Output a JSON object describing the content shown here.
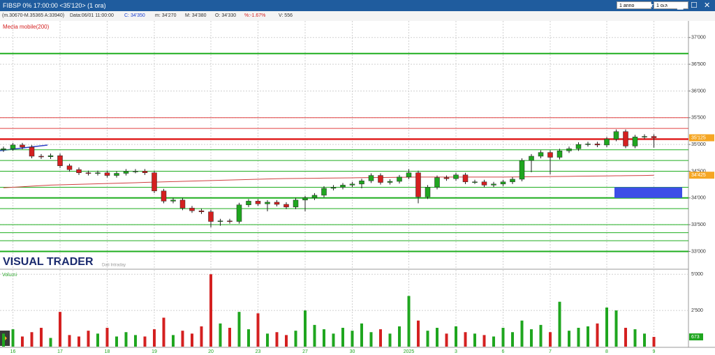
{
  "header": {
    "title": "FIBSP 0% 17:00:00  <35'120> (1 ora)",
    "period": "1 anno",
    "interval": "1 ora",
    "info": [
      "(m.30670-M.35365 A:33940)",
      "Data:06/01 11:00:00",
      "C: 34'350",
      "m: 34'270",
      "M: 34'380",
      "O: 34'330",
      "%:-1.67%",
      "V: 556"
    ]
  },
  "chart_data": {
    "type": "candlestick",
    "logo": "VISUAL TRADER",
    "logo_note": "Dati Intraday",
    "grid": true,
    "categories": [
      null,
      "16",
      null,
      null,
      null,
      null,
      "17",
      null,
      null,
      null,
      null,
      "18",
      null,
      null,
      null,
      null,
      "19",
      null,
      null,
      null,
      null,
      null,
      "20",
      null,
      null,
      null,
      null,
      "23",
      null,
      null,
      null,
      null,
      "27",
      null,
      null,
      null,
      null,
      "30",
      null,
      null,
      null,
      null,
      null,
      "2025",
      null,
      null,
      null,
      null,
      "3",
      null,
      null,
      null,
      null,
      "6",
      null,
      null,
      null,
      null,
      "7",
      null,
      null,
      null,
      null,
      null,
      "8",
      null,
      null,
      null,
      null,
      "9"
    ],
    "open": [
      34900,
      34920,
      34990,
      34950,
      34780,
      34770,
      34790,
      34600,
      34530,
      34470,
      34460,
      34470,
      34420,
      34460,
      34500,
      34500,
      34470,
      34130,
      33940,
      33960,
      33810,
      33760,
      33740,
      33560,
      33570,
      33560,
      33870,
      33940,
      33890,
      33920,
      33880,
      33830,
      33960,
      34000,
      34050,
      34180,
      34200,
      34240,
      34260,
      34320,
      34420,
      34290,
      34310,
      34390,
      34470,
      34020,
      34200,
      34380,
      34360,
      34430,
      34300,
      34300,
      34240,
      34260,
      34300,
      34350,
      34700,
      34780,
      34850,
      34760,
      34880,
      34920,
      35000,
      35010,
      34990,
      35100,
      35240,
      34970,
      35140,
      35150
    ],
    "high": [
      34960,
      35030,
      35030,
      34990,
      34820,
      34830,
      34830,
      34640,
      34570,
      34510,
      34510,
      34510,
      34500,
      34540,
      34540,
      34540,
      34510,
      34170,
      34000,
      34000,
      33850,
      33800,
      33780,
      33610,
      33610,
      33910,
      33980,
      33980,
      33960,
      33960,
      33920,
      34000,
      34040,
      34090,
      34220,
      34240,
      34280,
      34300,
      34360,
      34460,
      34460,
      34350,
      34430,
      34540,
      34510,
      34240,
      34420,
      34420,
      34470,
      34470,
      34340,
      34340,
      34300,
      34340,
      34390,
      34740,
      34820,
      34890,
      34890,
      34920,
      34960,
      35040,
      35050,
      35050,
      35140,
      35280,
      35280,
      35180,
      35190,
      35190
    ],
    "low": [
      34860,
      34880,
      34910,
      34740,
      34730,
      34730,
      34560,
      34490,
      34430,
      34420,
      34420,
      34380,
      34380,
      34420,
      34460,
      34430,
      34090,
      33900,
      33900,
      33770,
      33720,
      33700,
      33450,
      33480,
      33520,
      33520,
      33830,
      33850,
      33750,
      33840,
      33790,
      33790,
      33750,
      33960,
      34010,
      34140,
      34160,
      34200,
      34180,
      34280,
      34250,
      34250,
      34270,
      34350,
      33900,
      33980,
      34160,
      34320,
      34320,
      34260,
      34260,
      34200,
      34200,
      34220,
      34260,
      34310,
      34480,
      34740,
      34440,
      34720,
      34840,
      34880,
      34960,
      34950,
      34950,
      35060,
      34930,
      34930,
      35100,
      34940
    ],
    "close": [
      34920,
      34990,
      34950,
      34780,
      34770,
      34790,
      34600,
      34530,
      34470,
      34460,
      34470,
      34420,
      34460,
      34500,
      34500,
      34470,
      34130,
      33940,
      33960,
      33810,
      33760,
      33740,
      33560,
      33570,
      33560,
      33870,
      33940,
      33890,
      33920,
      33880,
      33830,
      33960,
      34000,
      34050,
      34180,
      34200,
      34240,
      34260,
      34320,
      34420,
      34290,
      34310,
      34390,
      34470,
      34020,
      34200,
      34380,
      34360,
      34430,
      34300,
      34300,
      34240,
      34260,
      34300,
      34350,
      34700,
      34780,
      34850,
      34760,
      34880,
      34920,
      35000,
      35010,
      34990,
      35100,
      35240,
      34970,
      35140,
      35150,
      35125
    ],
    "up_color": "#1fa61f",
    "down_color": "#d42020",
    "ma": {
      "name": "Media mobile(200)",
      "color": "#d04040",
      "values": [
        34190,
        34200,
        34210,
        34220,
        34230,
        34240,
        34245,
        34250,
        34255,
        34260,
        34265,
        34270,
        34275,
        34280,
        34285,
        34290,
        34295,
        34300,
        34305,
        34310,
        34315,
        34320,
        34325,
        34330,
        34335,
        34340,
        34345,
        34350,
        34355,
        34360,
        34362,
        34364,
        34366,
        34368,
        34370,
        34372,
        34374,
        34376,
        34378,
        34380,
        34382,
        34384,
        34386,
        34388,
        34390,
        34390,
        34390,
        34390,
        34390,
        34390,
        34390,
        34390,
        34390,
        34390,
        34392,
        34394,
        34396,
        34398,
        34400,
        34402,
        34404,
        34406,
        34408,
        34410,
        34412,
        34414,
        34416,
        34418,
        34420,
        34425
      ]
    },
    "levels": [
      {
        "value": 36700,
        "color": "#1fae1f",
        "width": 2
      },
      {
        "value": 35500,
        "color": "#e04040",
        "width": 1
      },
      {
        "value": 35300,
        "color": "#e04040",
        "width": 1
      },
      {
        "value": 35100,
        "color": "#e02020",
        "width": 2.5
      },
      {
        "value": 34900,
        "color": "#1fae1f",
        "width": 1
      },
      {
        "value": 34700,
        "color": "#1fae1f",
        "width": 1
      },
      {
        "value": 34500,
        "color": "#1fae1f",
        "width": 1
      },
      {
        "value": 34200,
        "color": "#1fae1f",
        "width": 1
      },
      {
        "value": 34000,
        "color": "#1fae1f",
        "width": 2
      },
      {
        "value": 33800,
        "color": "#1fae1f",
        "width": 1
      },
      {
        "value": 33500,
        "color": "#1fae1f",
        "width": 1
      },
      {
        "value": 33350,
        "color": "#1fae1f",
        "width": 1
      },
      {
        "value": 33200,
        "color": "#1fae1f",
        "width": 1
      },
      {
        "value": 33000,
        "color": "#1fae1f",
        "width": 2
      }
    ],
    "zones": [
      {
        "from": 34000,
        "to": 34200,
        "color": "#3d4ee8"
      }
    ],
    "price_markers": [
      {
        "value": 35125,
        "label": "35'125",
        "color": "#f5a623"
      },
      {
        "value": 34425,
        "label": "34'425",
        "color": "#f5a623"
      }
    ],
    "ylim": [
      32680,
      37310
    ],
    "yticks": [
      {
        "value": 37000,
        "label": "37'000"
      },
      {
        "value": 36500,
        "label": "36'500"
      },
      {
        "value": 36000,
        "label": "36'000"
      },
      {
        "value": 35500,
        "label": "35'500"
      },
      {
        "value": 35000,
        "label": "35'000"
      },
      {
        "value": 34500,
        "label": "34'500"
      },
      {
        "value": 34000,
        "label": "34'000"
      },
      {
        "value": 33500,
        "label": "33'500"
      },
      {
        "value": 33000,
        "label": "33'000"
      }
    ],
    "volume": {
      "name": "Volumi",
      "ylim": [
        0,
        5300
      ],
      "yticks": [
        {
          "value": 5000,
          "label": "5'000"
        },
        {
          "value": 2500,
          "label": "2'500"
        }
      ],
      "values": [
        900,
        1200,
        700,
        1000,
        1300,
        600,
        2400,
        800,
        700,
        1100,
        900,
        1300,
        700,
        1000,
        800,
        700,
        1200,
        2000,
        800,
        1100,
        900,
        1400,
        5000,
        1600,
        1300,
        2400,
        1200,
        2300,
        900,
        1000,
        800,
        1100,
        2500,
        1500,
        1200,
        900,
        1300,
        1100,
        1600,
        1000,
        1200,
        900,
        1400,
        3500,
        1800,
        1100,
        1300,
        900,
        1400,
        1000,
        900,
        800,
        700,
        1300,
        1000,
        1800,
        1200,
        1500,
        1000,
        3100,
        1100,
        1300,
        1400,
        1600,
        2700,
        2500,
        1300,
        1200,
        900,
        673
      ]
    }
  }
}
